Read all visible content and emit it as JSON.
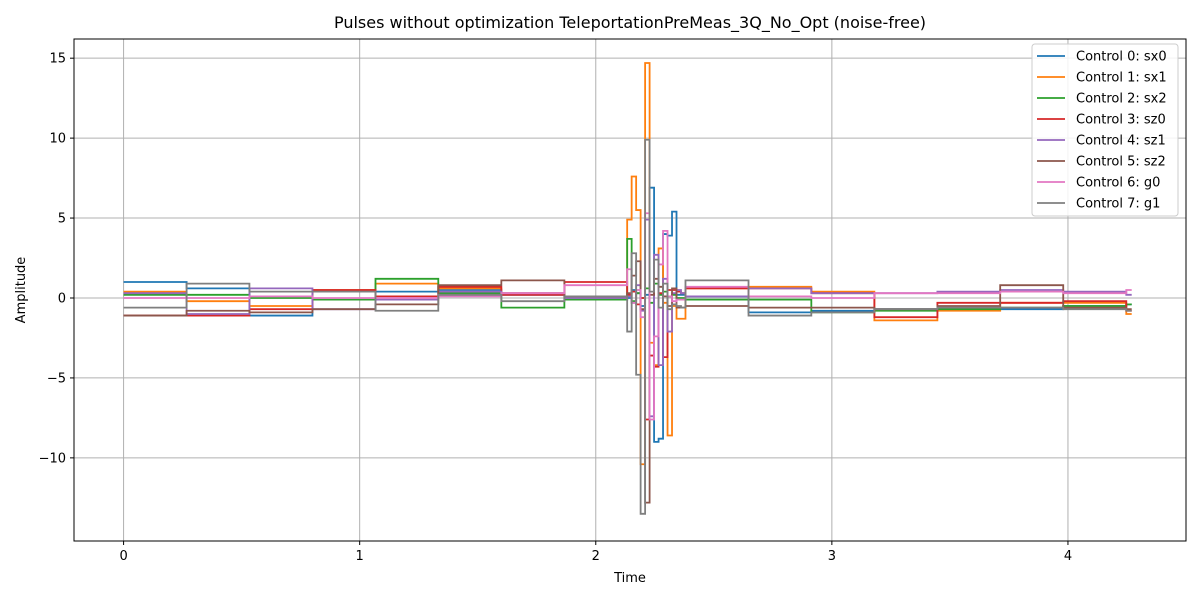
{
  "chart_data": {
    "type": "line",
    "title": "Pulses without optimization TeleportationPreMeas_3Q_No_Opt (noise-free)",
    "xlabel": "Time",
    "ylabel": "Amplitude",
    "xlim": [
      -0.21,
      4.5
    ],
    "ylim": [
      -15.2,
      16.2
    ],
    "xticks": [
      0,
      1,
      2,
      3,
      4
    ],
    "yticks": [
      -10,
      -5,
      0,
      5,
      10,
      15
    ],
    "xtick_labels": [
      "0",
      "1",
      "2",
      "3",
      "4"
    ],
    "ytick_labels": [
      "−10",
      "−5",
      "0",
      "5",
      "10",
      "15"
    ],
    "grid": true,
    "legend_position": "top-right",
    "step_style": "post",
    "x_edges": [
      0.0,
      0.267,
      0.533,
      0.8,
      1.067,
      1.333,
      1.6,
      1.867,
      2.133,
      2.152,
      2.171,
      2.19,
      2.209,
      2.228,
      2.247,
      2.266,
      2.285,
      2.304,
      2.323,
      2.342,
      2.361,
      2.38,
      2.647,
      2.913,
      3.18,
      3.447,
      3.713,
      3.98,
      4.247,
      4.27
    ],
    "series": [
      {
        "name": "Control 0: sx0",
        "color": "#1f77b4",
        "values": [
          1.0,
          0.6,
          -1.1,
          0.4,
          0.4,
          0.5,
          0.2,
          -0.1,
          0.0,
          0.5,
          0.3,
          -0.5,
          0.2,
          6.9,
          -9.0,
          -8.8,
          4.0,
          3.9,
          5.4,
          0.2,
          0.2,
          0.1,
          -0.9,
          -0.8,
          -0.7,
          -0.6,
          -0.7,
          -0.5,
          -0.4
        ]
      },
      {
        "name": "Control 1: sx1",
        "color": "#ff7f0e",
        "values": [
          0.4,
          -0.2,
          -0.5,
          0.5,
          0.9,
          0.6,
          0.3,
          0.1,
          4.9,
          7.6,
          5.5,
          -10.4,
          14.7,
          -2.8,
          -4.2,
          3.1,
          -0.3,
          -8.6,
          -0.5,
          -1.3,
          -1.3,
          0.6,
          0.7,
          0.4,
          -1.4,
          -0.8,
          -0.3,
          -0.3,
          -1.0
        ]
      },
      {
        "name": "Control 2: sx2",
        "color": "#2ca02c",
        "values": [
          0.2,
          0.2,
          0.0,
          -0.1,
          1.2,
          0.3,
          -0.6,
          -0.1,
          3.7,
          -0.2,
          0.3,
          0.0,
          0.6,
          -0.3,
          0.9,
          0.2,
          0.4,
          0.1,
          0.2,
          0.0,
          0.0,
          -0.1,
          -0.1,
          -0.9,
          -0.8,
          -0.7,
          -0.6,
          -0.5,
          -0.4
        ]
      },
      {
        "name": "Control 3: sz0",
        "color": "#d62728",
        "values": [
          -1.1,
          -1.1,
          -0.7,
          0.5,
          0.1,
          0.7,
          0.2,
          1.0,
          0.2,
          0.4,
          -0.4,
          0.0,
          -7.6,
          -3.6,
          -4.3,
          0.3,
          -3.7,
          0.5,
          0.5,
          0.4,
          0.3,
          0.6,
          0.6,
          0.3,
          -1.2,
          -0.3,
          -0.3,
          -0.2,
          -0.8
        ]
      },
      {
        "name": "Control 4: sz1",
        "color": "#9467bd",
        "values": [
          0.3,
          -1.0,
          0.6,
          -0.7,
          -0.1,
          0.4,
          0.3,
          0.0,
          0.1,
          -0.3,
          0.8,
          -0.8,
          4.9,
          -7.4,
          2.7,
          -4.2,
          1.2,
          -2.1,
          0.3,
          0.5,
          0.3,
          0.1,
          0.6,
          0.3,
          0.3,
          0.4,
          0.5,
          0.4,
          0.2
        ]
      },
      {
        "name": "Control 5: sz2",
        "color": "#8c564b",
        "values": [
          -1.1,
          -0.8,
          -0.9,
          -0.7,
          -0.4,
          0.8,
          1.1,
          0.1,
          0.3,
          1.4,
          2.3,
          -0.7,
          -12.8,
          0.2,
          1.2,
          0.7,
          0.1,
          -0.5,
          0.6,
          -0.6,
          -0.6,
          -0.5,
          -0.6,
          -0.6,
          -0.7,
          -0.5,
          0.8,
          -0.6,
          -0.7
        ]
      },
      {
        "name": "Control 6: g0",
        "color": "#e377c2",
        "values": [
          0.0,
          0.0,
          0.1,
          0.0,
          0.0,
          0.1,
          0.3,
          0.8,
          1.8,
          -0.3,
          0.5,
          -1.2,
          5.3,
          -7.6,
          -2.4,
          2.1,
          4.2,
          0.1,
          -0.2,
          -0.1,
          -0.1,
          0.7,
          0.1,
          0.0,
          0.3,
          0.3,
          0.4,
          0.3,
          0.5
        ]
      },
      {
        "name": "Control 7: g1",
        "color": "#7f7f7f",
        "values": [
          -0.6,
          0.9,
          0.4,
          0.4,
          -0.8,
          0.2,
          -0.2,
          0.1,
          -2.1,
          2.8,
          -4.8,
          -13.5,
          9.9,
          0.4,
          2.4,
          -0.6,
          0.9,
          -0.7,
          -0.4,
          -0.5,
          -0.6,
          1.1,
          -1.1,
          -0.9,
          -0.7,
          -0.6,
          -0.6,
          -0.7,
          -0.8
        ]
      }
    ]
  }
}
